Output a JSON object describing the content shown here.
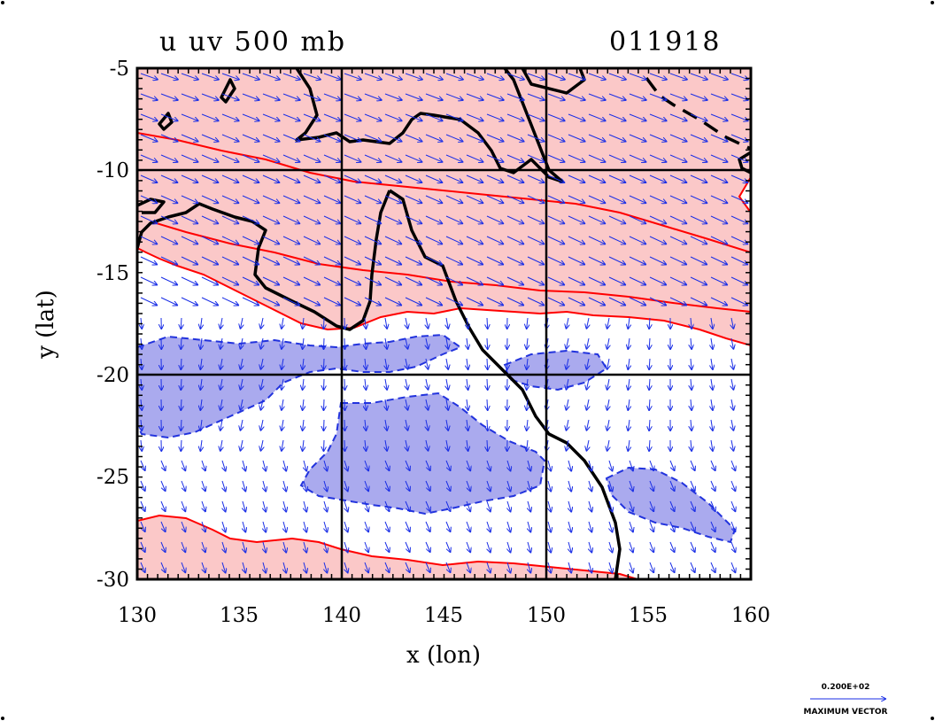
{
  "title": {
    "left": "u uv 500 mb",
    "right": "011918"
  },
  "map": {
    "x_axis": {
      "label": "x (lon)",
      "range": [
        130,
        160
      ],
      "ticks": [
        130,
        135,
        140,
        145,
        150,
        155,
        160
      ]
    },
    "y_axis": {
      "label": "y (lat)",
      "range": [
        -30,
        -5
      ],
      "ticks": [
        -5,
        -10,
        -15,
        -20,
        -25,
        -30
      ]
    },
    "grid_lines": {
      "lon": [
        140,
        150
      ],
      "lat": [
        -10,
        -20
      ]
    },
    "colors": {
      "positive_fill": "#fbc8c8",
      "positive_line": "#ff0000",
      "negative_fill": "#aaaaee",
      "negative_line": "#2233dd",
      "vectors": "#1a2ee6",
      "coast": "#000000"
    },
    "vector_legend": {
      "value": "0.200E+02",
      "label": "MAXIMUM VECTOR"
    }
  }
}
